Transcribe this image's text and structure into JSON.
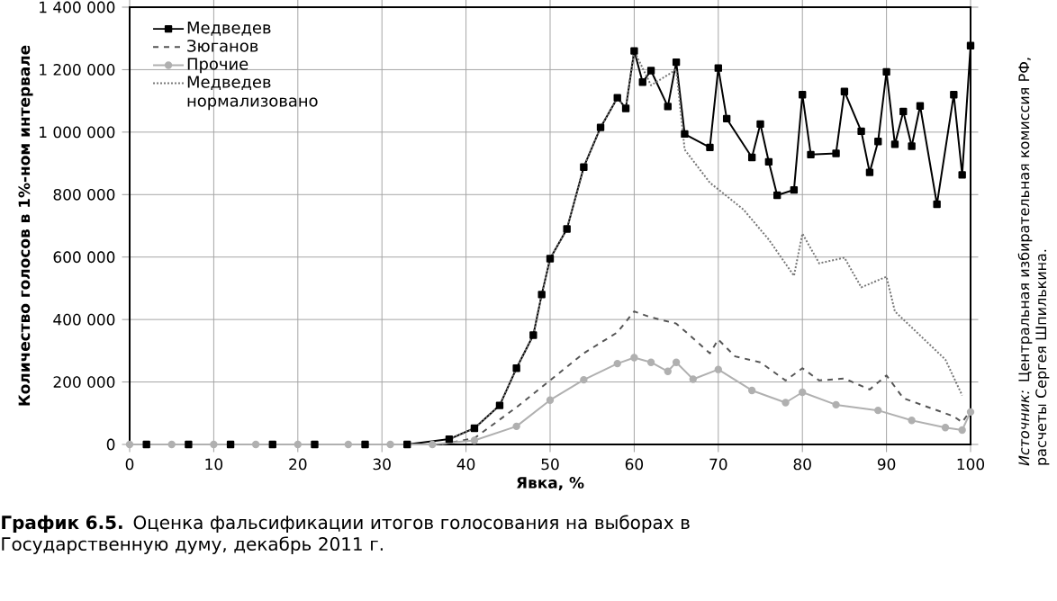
{
  "chart_data": {
    "type": "line",
    "title": "**График 6.5.** Оценка фальсификации итогов голосования на выборах в Государственную думу, декабрь 2011 г.",
    "xlabel": "Явка, %",
    "ylabel": "Количество голосов в 1%-ном интервале",
    "annotations": [
      "*Источник:* Центральная избирательная комиссия РФ, расчеты Сергея Шпилькина."
    ],
    "xlim": [
      0,
      100
    ],
    "ylim": [
      0,
      1400000
    ],
    "xticks": [
      0,
      10,
      20,
      30,
      40,
      50,
      60,
      70,
      80,
      90,
      100
    ],
    "yticks": [
      {
        "value": 0,
        "label": "0"
      },
      {
        "value": 200000,
        "label": "200 000"
      },
      {
        "value": 400000,
        "label": "400 000"
      },
      {
        "value": 600000,
        "label": "600 000"
      },
      {
        "value": 800000,
        "label": "800 000"
      },
      {
        "value": 1000000,
        "label": "1 000 000"
      },
      {
        "value": 1200000,
        "label": "1 200 000"
      },
      {
        "value": 1400000,
        "label": "1 400 000"
      }
    ],
    "grid": true,
    "legend": "top left",
    "series": [
      {
        "name": "Медведев",
        "color": "#000000",
        "marker": "square",
        "line_style": "solid",
        "x": [
          2,
          7,
          12,
          17,
          22,
          28,
          33,
          38,
          41,
          44,
          46,
          48,
          49,
          50,
          52,
          54,
          56,
          58,
          59,
          60,
          61,
          62,
          64,
          65,
          66,
          69,
          70,
          71,
          74,
          75,
          76,
          77,
          79,
          80,
          81,
          84,
          85,
          87,
          88,
          89,
          90,
          91,
          92,
          93,
          94,
          96,
          98,
          99,
          100
        ],
        "values": [
          0,
          0,
          0,
          0,
          0,
          0,
          0,
          17000,
          52000,
          125000,
          244000,
          350000,
          480000,
          595000,
          690000,
          888000,
          1015000,
          1110000,
          1076000,
          1260000,
          1160000,
          1197000,
          1082000,
          1224000,
          994000,
          951000,
          1205000,
          1043000,
          919000,
          1026000,
          905000,
          798000,
          815000,
          1120000,
          928000,
          932000,
          1130000,
          1003000,
          871000,
          970000,
          1193000,
          961000,
          1066000,
          955000,
          1084000,
          769000,
          1120000,
          863000,
          1277000
        ]
      },
      {
        "name": "Зюганов",
        "color": "#555555",
        "marker": "none",
        "line_style": "dashed",
        "x": [
          0,
          37,
          41,
          46,
          50,
          54,
          58,
          60,
          62,
          65,
          67,
          69,
          70,
          72,
          75,
          78,
          80,
          82,
          85,
          88,
          90,
          92,
          95,
          98,
          99,
          100
        ],
        "values": [
          0,
          0,
          20000,
          119000,
          205000,
          292000,
          359000,
          426000,
          407000,
          387000,
          340000,
          292000,
          336000,
          282000,
          263000,
          205000,
          244000,
          205000,
          211000,
          176000,
          221000,
          148000,
          119000,
          90000,
          71000,
          109000
        ]
      },
      {
        "name": "Прочие",
        "color": "#b0b0b0",
        "marker": "circle",
        "line_style": "solid",
        "x": [
          0,
          5,
          10,
          15,
          20,
          26,
          31,
          36,
          41,
          46,
          50,
          54,
          58,
          60,
          62,
          64,
          65,
          67,
          70,
          74,
          78,
          80,
          84,
          89,
          93,
          97,
          99,
          100
        ],
        "values": [
          0,
          0,
          0,
          0,
          0,
          0,
          0,
          0,
          13000,
          58000,
          142000,
          207000,
          259000,
          278000,
          263000,
          234000,
          263000,
          209000,
          240000,
          173000,
          134000,
          167000,
          127000,
          109000,
          77000,
          54000,
          46000,
          104000
        ]
      },
      {
        "name": "Медведев нормализовано",
        "color": "#777777",
        "marker": "none",
        "line_style": "dotted",
        "x": [
          38,
          41,
          44,
          46,
          48,
          49,
          50,
          52,
          54,
          56,
          58,
          59,
          60,
          62,
          65,
          66,
          69,
          73,
          76,
          79,
          80,
          82,
          85,
          87,
          90,
          91,
          94,
          97,
          99
        ],
        "values": [
          17000,
          52000,
          125000,
          244000,
          350000,
          480000,
          595000,
          690000,
          888000,
          1015000,
          1110000,
          1076000,
          1260000,
          1150000,
          1200000,
          944000,
          838000,
          752000,
          656000,
          540000,
          675000,
          580000,
          598000,
          503000,
          537000,
          426000,
          349000,
          272000,
          157000
        ]
      }
    ]
  }
}
